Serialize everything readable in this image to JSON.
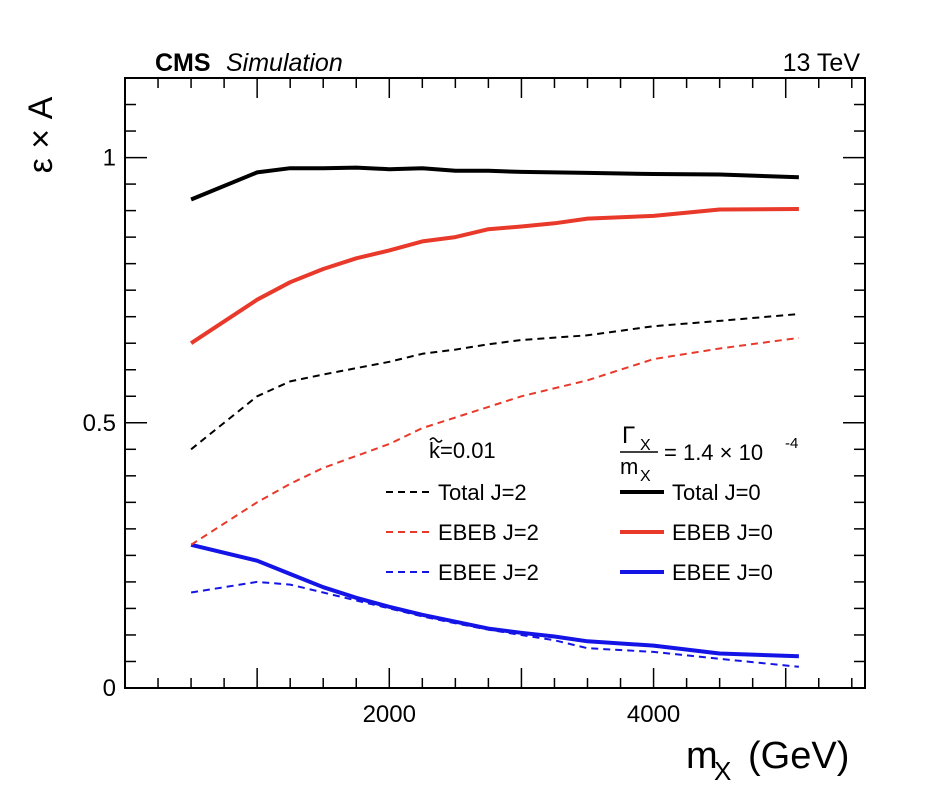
{
  "header": {
    "experiment": "CMS",
    "tag": "Simulation",
    "energy": "13 TeV"
  },
  "chart_data": {
    "type": "line",
    "xlabel": "m",
    "xlabel_sub": "X",
    "xlabel_unit": "(GeV)",
    "ylabel": "ε × A",
    "xlim": [
      0,
      5600
    ],
    "ylim": [
      0,
      1.15
    ],
    "x_ticks": [
      2000,
      4000
    ],
    "y_ticks": [
      0,
      0.5,
      1
    ],
    "y_tick_labels": [
      "0",
      "0.5",
      "1"
    ],
    "x_tick_labels": [
      "2000",
      "4000"
    ],
    "grid": false,
    "legend": {
      "kappa_label": "k=0.01",
      "width_ratio_num": "Γ",
      "width_ratio_num_sub": "X",
      "width_ratio_den": "m",
      "width_ratio_den_sub": "X",
      "width_ratio_value": "= 1.4 × 10",
      "width_ratio_exp": "-4"
    },
    "colors": {
      "total": "#000000",
      "ebeb": "#e8392b",
      "ebee": "#1414e6"
    },
    "series": [
      {
        "name": "Total J=0",
        "color": "#000000",
        "style": "solid",
        "x": [
          500,
          1000,
          1250,
          1500,
          1750,
          2000,
          2250,
          2500,
          2750,
          3000,
          3500,
          4000,
          4500,
          5100
        ],
        "y": [
          0.921,
          0.972,
          0.98,
          0.98,
          0.981,
          0.978,
          0.98,
          0.975,
          0.975,
          0.973,
          0.971,
          0.969,
          0.968,
          0.963
        ]
      },
      {
        "name": "EBEB J=0",
        "color": "#e8392b",
        "style": "solid",
        "x": [
          500,
          1000,
          1250,
          1500,
          1750,
          2000,
          2250,
          2500,
          2750,
          3000,
          3250,
          3500,
          4000,
          4500,
          5100
        ],
        "y": [
          0.65,
          0.732,
          0.765,
          0.79,
          0.81,
          0.825,
          0.842,
          0.85,
          0.865,
          0.87,
          0.876,
          0.885,
          0.89,
          0.902,
          0.903
        ]
      },
      {
        "name": "EBEE J=0",
        "color": "#1414e6",
        "style": "solid",
        "x": [
          500,
          1000,
          1250,
          1500,
          1750,
          2000,
          2250,
          2500,
          2750,
          3000,
          3250,
          3500,
          4000,
          4500,
          5100
        ],
        "y": [
          0.27,
          0.24,
          0.215,
          0.19,
          0.17,
          0.153,
          0.138,
          0.125,
          0.112,
          0.104,
          0.097,
          0.088,
          0.08,
          0.065,
          0.06
        ]
      },
      {
        "name": "Total J=2",
        "color": "#000000",
        "style": "dashed",
        "x": [
          500,
          1000,
          1250,
          1500,
          2000,
          2250,
          2500,
          2750,
          3000,
          3500,
          4000,
          4500,
          5100
        ],
        "y": [
          0.45,
          0.55,
          0.578,
          0.591,
          0.615,
          0.63,
          0.638,
          0.648,
          0.656,
          0.665,
          0.682,
          0.692,
          0.705
        ]
      },
      {
        "name": "EBEB J=2",
        "color": "#e8392b",
        "style": "dashed",
        "x": [
          500,
          1000,
          1250,
          1500,
          2000,
          2250,
          2500,
          2750,
          3000,
          3500,
          4000,
          4500,
          5100
        ],
        "y": [
          0.27,
          0.35,
          0.385,
          0.415,
          0.46,
          0.49,
          0.51,
          0.53,
          0.55,
          0.58,
          0.62,
          0.64,
          0.66
        ]
      },
      {
        "name": "EBEE J=2",
        "color": "#1414e6",
        "style": "dashed",
        "x": [
          500,
          1000,
          1250,
          1500,
          1750,
          2000,
          2250,
          2500,
          2750,
          3000,
          3250,
          3500,
          4000,
          4500,
          5100
        ],
        "y": [
          0.18,
          0.2,
          0.195,
          0.18,
          0.165,
          0.15,
          0.135,
          0.122,
          0.11,
          0.1,
          0.09,
          0.075,
          0.068,
          0.055,
          0.04
        ]
      }
    ],
    "legend_entries": [
      {
        "label": "Total J=2",
        "color": "#000000",
        "style": "dashed",
        "col": 0,
        "row": 0
      },
      {
        "label": "EBEB J=2",
        "color": "#e8392b",
        "style": "dashed",
        "col": 0,
        "row": 1
      },
      {
        "label": "EBEE J=2",
        "color": "#1414e6",
        "style": "dashed",
        "col": 0,
        "row": 2
      },
      {
        "label": "Total J=0",
        "color": "#000000",
        "style": "solid",
        "col": 1,
        "row": 0
      },
      {
        "label": "EBEB J=0",
        "color": "#e8392b",
        "style": "solid",
        "col": 1,
        "row": 1
      },
      {
        "label": "EBEE J=0",
        "color": "#1414e6",
        "style": "solid",
        "col": 1,
        "row": 2
      }
    ]
  }
}
